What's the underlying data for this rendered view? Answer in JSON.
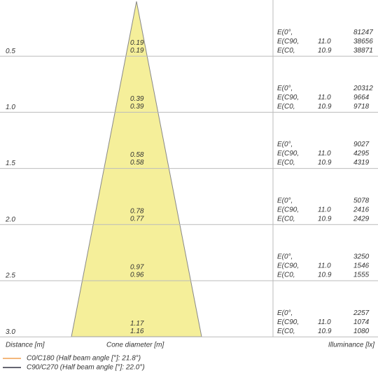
{
  "rows": [
    {
      "distance": "0.5",
      "cone": [
        "0.19",
        "0.19"
      ],
      "labels": [
        "E(0°,",
        "E(C90,",
        "E(C0,"
      ],
      "angles": [
        "11.0",
        "10.9"
      ],
      "values": [
        "81247",
        "38656",
        "38871"
      ]
    },
    {
      "distance": "1.0",
      "cone": [
        "0.39",
        "0.39"
      ],
      "labels": [
        "E(0°,",
        "E(C90,",
        "E(C0,"
      ],
      "angles": [
        "11.0",
        "10.9"
      ],
      "values": [
        "20312",
        "9664",
        "9718"
      ]
    },
    {
      "distance": "1.5",
      "cone": [
        "0.58",
        "0.58"
      ],
      "labels": [
        "E(0°,",
        "E(C90,",
        "E(C0,"
      ],
      "angles": [
        "11.0",
        "10.9"
      ],
      "values": [
        "9027",
        "4295",
        "4319"
      ]
    },
    {
      "distance": "2.0",
      "cone": [
        "0.78",
        "0.77"
      ],
      "labels": [
        "E(0°,",
        "E(C90,",
        "E(C0,"
      ],
      "angles": [
        "11.0",
        "10.9"
      ],
      "values": [
        "5078",
        "2416",
        "2429"
      ]
    },
    {
      "distance": "2.5",
      "cone": [
        "0.97",
        "0.96"
      ],
      "labels": [
        "E(0°,",
        "E(C90,",
        "E(C0,"
      ],
      "angles": [
        "11.0",
        "10.9"
      ],
      "values": [
        "3250",
        "1546",
        "1555"
      ]
    },
    {
      "distance": "3.0",
      "cone": [
        "1.17",
        "1.16"
      ],
      "labels": [
        "E(0°,",
        "E(C90,",
        "E(C0,"
      ],
      "angles": [
        "11.0",
        "10.9"
      ],
      "values": [
        "2257",
        "1074",
        "1080"
      ]
    }
  ],
  "footer": {
    "distance": "Distance [m]",
    "cone": "Cone diameter [m]",
    "illuminance": "Illuminance [lx]"
  },
  "legend": [
    "C0/C180 (Half beam angle [°]: 21.8°)",
    "C90/C270 (Half beam angle [°]: 22.0°)"
  ]
}
